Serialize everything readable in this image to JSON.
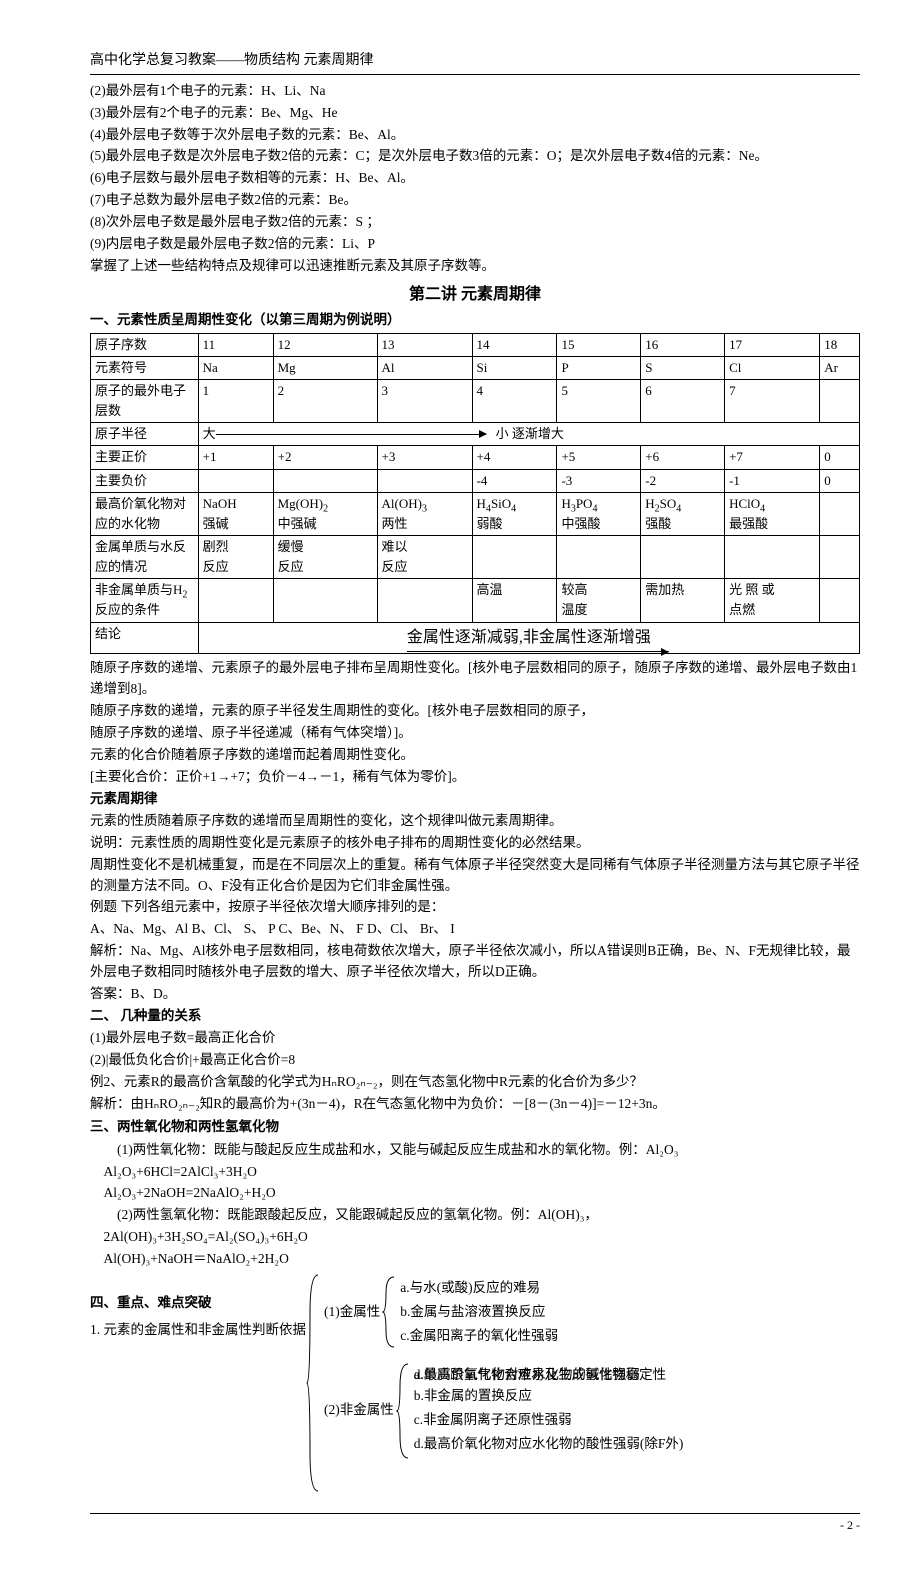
{
  "header": "高中化学总复习教案——物质结构 元素周期律",
  "rules": [
    "(2)最外层有1个电子的元素：H、Li、Na",
    "(3)最外层有2个电子的元素：Be、Mg、He",
    "(4)最外层电子数等于次外层电子数的元素：Be、Al。",
    "(5)最外层电子数是次外层电子数2倍的元素：C；是次外层电子数3倍的元素：O；是次外层电子数4倍的元素：Ne。",
    "(6)电子层数与最外层电子数相等的元素：H、Be、Al。",
    "(7)电子总数为最外层电子数2倍的元素：Be。",
    "(8)次外层电子数是最外层电子数2倍的元素：S  ；",
    "(9)内层电子数是最外层电子数2倍的元素：Li、P",
    "掌握了上述一些结构特点及规律可以迅速推断元素及其原子序数等。"
  ],
  "lecture_title": "第二讲    元素周期律",
  "section1_title": "一、元素性质呈周期性变化（以第三周期为例说明）",
  "table": {
    "rows": [
      {
        "label": "原子序数",
        "cells": [
          "11",
          "12",
          "13",
          "14",
          "15",
          "16",
          "17",
          "18"
        ]
      },
      {
        "label": "元素符号",
        "cells": [
          "Na",
          "Mg",
          "Al",
          "Si",
          "P",
          "S",
          "Cl",
          "Ar"
        ]
      },
      {
        "label": "原子的最外电子层数",
        "cells": [
          "1",
          "2",
          "3",
          "4",
          "5",
          "6",
          "7",
          ""
        ]
      },
      {
        "label": "原子半径",
        "type": "arrow",
        "left": "大",
        "right": "小  逐渐增大"
      },
      {
        "label": "主要正价",
        "cells": [
          "+1",
          "+2",
          "+3",
          "+4",
          "+5",
          "+6",
          "+7",
          "0"
        ]
      },
      {
        "label": "主要负价",
        "cells": [
          "",
          "",
          "",
          "-4",
          "-3",
          "-2",
          "-1",
          "0"
        ]
      },
      {
        "label": "最高价氧化物对应的水化物",
        "cells": [
          "NaOH\n强碱",
          "Mg(OH)₂\n中强碱",
          "Al(OH)₃\n两性",
          "H₄SiO₄\n弱酸",
          "H₃PO₄\n中强酸",
          "H₂SO₄\n强酸",
          "HClO₄\n最强酸",
          ""
        ]
      },
      {
        "label": "金属单质与水反应的情况",
        "cells": [
          "剧烈\n反应",
          "缓慢\n反应",
          "难以\n反应",
          "",
          "",
          "",
          "",
          ""
        ]
      },
      {
        "label": "非金属单质与H₂反应的条件",
        "cells": [
          "",
          "",
          "",
          "高温",
          "较高\n温度",
          "需加热",
          "光 照 或\n点燃",
          ""
        ]
      },
      {
        "label": "结论",
        "type": "conclusion",
        "text": "金属性逐渐减弱,非金属性逐渐增强"
      }
    ]
  },
  "body_after_table": [
    {
      "indent": 1,
      "text": "随原子序数的递增、元素原子的最外层电子排布呈周期性变化。[核外电子层数相同的原子，随原子序数的递增、最外层电子数由1递增到8]。"
    },
    {
      "indent": 1,
      "text": "随原子序数的递增，元素的原子半径发生周期性的变化。[核外电子层数相同的原子，"
    },
    {
      "indent": 0,
      "text": "随原子序数的递增、原子半径递减（稀有气体突增）]。"
    },
    {
      "indent": 1,
      "text": "元素的化合价随着原子序数的递增而起着周期性变化。"
    },
    {
      "indent": 1,
      "text": "[主要化合价：正价+1→+7；负价－4→－1，稀有气体为零价]。"
    },
    {
      "indent": 1,
      "text": "元素周期律",
      "bold": true
    },
    {
      "indent": 1,
      "text": "元素的性质随着原子序数的递增而呈周期性的变化，这个规律叫做元素周期律。"
    },
    {
      "indent": 1,
      "text": "说明：元素性质的周期性变化是元素原子的核外电子排布的周期性变化的必然结果。"
    },
    {
      "indent": 0,
      "text": "周期性变化不是机械重复，而是在不同层次上的重复。稀有气体原子半径突然变大是同稀有气体原子半径测量方法与其它原子半径的测量方法不同。O、F没有正化合价是因为它们非金属性强。"
    },
    {
      "indent": 1,
      "text": "例题  下列各组元素中，按原子半径依次增大顺序排列的是："
    },
    {
      "indent": 1,
      "text": "A、Na、Mg、Al  B、Cl、 S、 P  C、Be、N、 F   D、Cl、 Br、 I"
    },
    {
      "indent": 1,
      "text": "解析：Na、Mg、Al核外电子层数相同，核电荷数依次增大，原子半径依次减小，所以A错误则B正确，Be、N、F无规律比较，最外层电子数相同时随核外电子层数的增大、原子半径依次增大，所以D正确。"
    },
    {
      "indent": 1,
      "text": "答案：B、D。"
    },
    {
      "indent": 1,
      "text": "二、 几种量的关系",
      "bold": true
    },
    {
      "indent": 1,
      "text": "(1)最外层电子数=最高正化合价"
    },
    {
      "indent": 1,
      "text": "(2)|最低负化合价|+最高正化合价=8"
    },
    {
      "indent": 1,
      "text": "例2、元素R的最高价含氧酸的化学式为HₙRO₂ₙ₋₂，则在气态氢化物中R元素的化合价为多少？"
    },
    {
      "indent": 1,
      "text": "解析：由HₙRO₂ₙ₋₂知R的最高价为+(3n－4)，R在气态氢化物中为负价：－[8－(3n－4)]=－12+3n。"
    }
  ],
  "section3_title": "三、两性氧化物和两性氢氧化物",
  "section3_body": [
    "(1)两性氧化物：既能与酸起反应生成盐和水，又能与碱起反应生成盐和水的氧化物。例：Al₂O₃",
    "Al₂O₃+6HCl=2AlCl₃+3H₂O",
    "Al₂O₃+2NaOH=2NaAlO₂+H₂O",
    "(2)两性氢氧化物：既能跟酸起反应，又能跟碱起反应的氢氧化物。例：Al(OH)₃，",
    "2Al(OH)₃+3H₂SO₄=Al₂(SO₄)₃+6H₂O",
    "Al(OH)₃+NaOH＝NaAlO₂+2H₂O"
  ],
  "section4_title": "四、重点、难点突破",
  "section4_item1": "1. 元素的金属性和非金属性判断依据",
  "metal": {
    "label": "(1)金属性",
    "items": [
      "a.与水(或酸)反应的难易",
      "b.金属与盐溶液置换反应",
      "c.金属阳离子的氧化性强弱"
    ]
  },
  "nonmetal": {
    "label": "(2)非金属性",
    "items_overlap": [
      "a.单质跟氢气化合难易及生成氢化物稳定性",
      "d.最高价氧化物对应水化物的碱性强弱"
    ],
    "items": [
      "b.非金属的置换反应",
      "c.非金属阴离子还原性强弱",
      "d.最高价氧化物对应水化物的酸性强弱(除F外)"
    ]
  },
  "page_number": "- 2 -"
}
